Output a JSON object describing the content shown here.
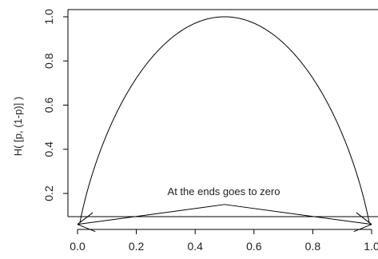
{
  "chart_data": {
    "type": "line",
    "title": "",
    "xlabel": "",
    "ylabel": "H( [p, (1-p)] )",
    "xlim": [
      0.0,
      1.0
    ],
    "ylim": [
      0.05,
      1.0
    ],
    "x_ticks": [
      "0.0",
      "0.2",
      "0.4",
      "0.6",
      "0.8",
      "1.0"
    ],
    "y_ticks": [
      "0.2",
      "0.4",
      "0.6",
      "0.8",
      "1.0"
    ],
    "grid": false,
    "legend": "none",
    "series": [
      {
        "function": "binary_entropy",
        "x": [
          0.001,
          0.01,
          0.02,
          0.05,
          0.1,
          0.15,
          0.2,
          0.25,
          0.3,
          0.35,
          0.4,
          0.45,
          0.5,
          0.55,
          0.6,
          0.65,
          0.7,
          0.75,
          0.8,
          0.85,
          0.9,
          0.95,
          0.98,
          0.99,
          0.999
        ],
        "values": [
          0.011,
          0.081,
          0.141,
          0.286,
          0.469,
          0.61,
          0.722,
          0.811,
          0.881,
          0.934,
          0.971,
          0.993,
          1.0,
          0.993,
          0.971,
          0.934,
          0.881,
          0.811,
          0.722,
          0.61,
          0.469,
          0.286,
          0.141,
          0.081,
          0.011
        ]
      }
    ],
    "annotations": [
      {
        "text": "At the ends goes to zero",
        "text_at": [
          0.5,
          0.2
        ],
        "arrows": [
          {
            "from": [
              0.5,
              0.15
            ],
            "to": [
              0.0,
              0.06
            ]
          },
          {
            "from": [
              0.5,
              0.15
            ],
            "to": [
              1.0,
              0.06
            ]
          }
        ]
      }
    ],
    "colors": {
      "line": "#000000",
      "axis": "#000000",
      "text": "#222222",
      "background": "#ffffff"
    }
  }
}
